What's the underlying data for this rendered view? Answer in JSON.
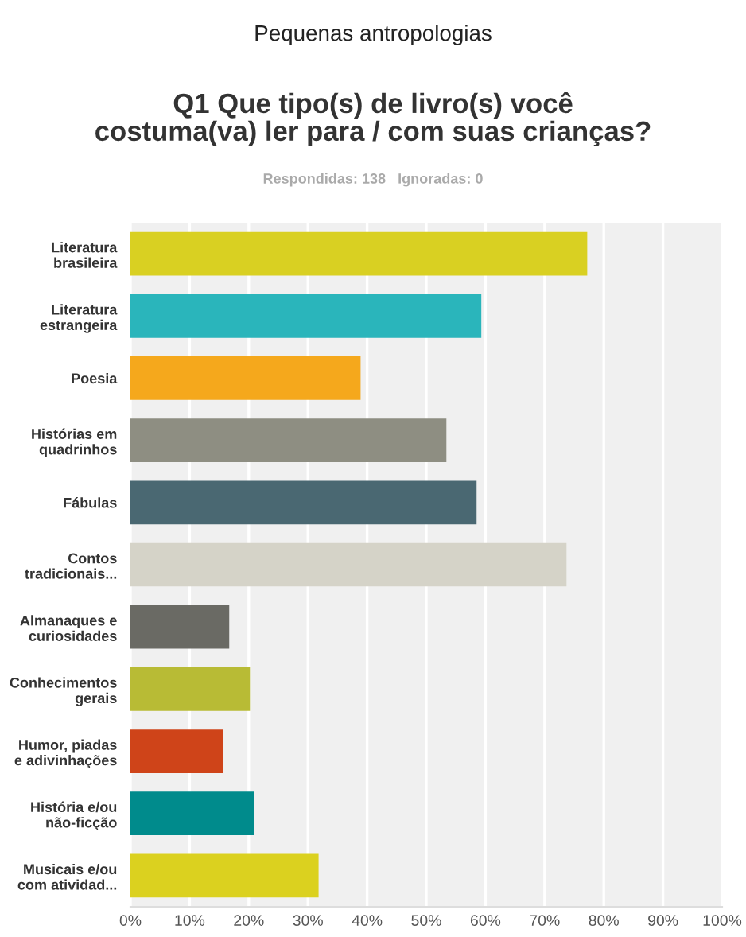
{
  "chart_data": {
    "type": "bar",
    "orientation": "horizontal",
    "title": "Pequenas antropologias",
    "subtitle": "Q1 Que tipo(s) de livro(s) você\ncostuma(va) ler para / com suas crianças?",
    "annotations": [
      "Respondidas: 138   Ignoradas: 0"
    ],
    "categories": [
      "Literatura\nbrasileira",
      "Literatura\nestrangeira",
      "Poesia",
      "Histórias em\nquadrinhos",
      "Fábulas",
      "Contos\ntradicionais...",
      "Almanaques e\ncuriosidades",
      "Conhecimentos\ngerais",
      "Humor, piadas\ne adivinhações",
      "História e/ou\nnão-ficção",
      "Musicais e/ou\ncom atividad..."
    ],
    "values": [
      77.2,
      59.3,
      38.9,
      53.4,
      58.5,
      73.7,
      16.7,
      20.2,
      15.7,
      20.9,
      31.8
    ],
    "colors": [
      "#d9d022",
      "#2ab5bb",
      "#f5a81c",
      "#8e8e82",
      "#4a6872",
      "#d5d3c8",
      "#6a6a64",
      "#b8bb35",
      "#cf4419",
      "#008b8c",
      "#dbd11f"
    ],
    "xlim": [
      0,
      100
    ],
    "xticks": [
      {
        "value": 0,
        "label": "0%"
      },
      {
        "value": 10,
        "label": "10%"
      },
      {
        "value": 20,
        "label": "20%"
      },
      {
        "value": 30,
        "label": "30%"
      },
      {
        "value": 40,
        "label": "40%"
      },
      {
        "value": 50,
        "label": "50%"
      },
      {
        "value": 60,
        "label": "60%"
      },
      {
        "value": 70,
        "label": "70%"
      },
      {
        "value": 80,
        "label": "80%"
      },
      {
        "value": 90,
        "label": "90%"
      },
      {
        "value": 100,
        "label": "100%"
      }
    ],
    "grid": "x"
  }
}
